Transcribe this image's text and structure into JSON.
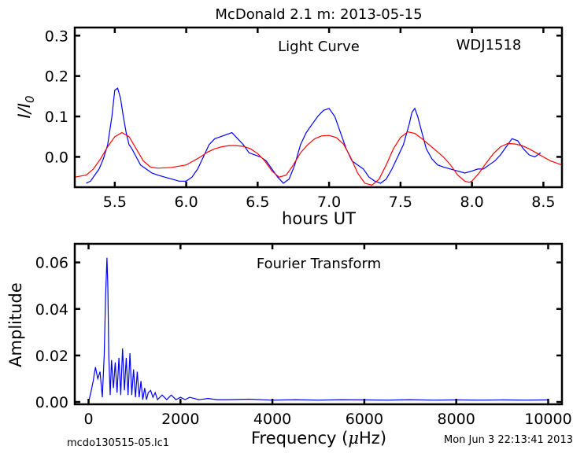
{
  "figure": {
    "title": "McDonald 2.1 m:  2013-05-15",
    "footer_left": "mcdo130515-05.lc1",
    "footer_right": "Mon Jun  3 22:13:41 2013"
  },
  "colors": {
    "data_line": "#0000ff",
    "model_line": "#ff0000",
    "axes": "#000000"
  },
  "chart_data": [
    {
      "type": "line",
      "annotations": [
        "Light Curve",
        "WDJ1518"
      ],
      "xlabel": "hours UT",
      "ylabel_parts": {
        "base": "I",
        "slash": "/",
        "denominator": "I",
        "subscript": "0"
      },
      "xlim": [
        5.22,
        8.63
      ],
      "ylim": [
        -0.075,
        0.32
      ],
      "x_ticks": [
        5.5,
        6.0,
        6.5,
        7.0,
        7.5,
        8.0,
        8.5
      ],
      "x_tick_labels": [
        "5.5",
        "6.0",
        "6.5",
        "7.0",
        "7.5",
        "8.0",
        "8.5"
      ],
      "y_ticks": [
        0.0,
        0.1,
        0.2,
        0.3
      ],
      "y_tick_labels": [
        "0.0",
        "0.1",
        "0.2",
        "0.3"
      ],
      "grid": false,
      "legend": false,
      "series": [
        {
          "role": "data",
          "x": [
            5.3,
            5.33,
            5.36,
            5.39,
            5.42,
            5.45,
            5.48,
            5.5,
            5.52,
            5.54,
            5.56,
            5.58,
            5.6,
            5.62,
            5.65,
            5.68,
            5.72,
            5.76,
            5.8,
            5.85,
            5.9,
            5.95,
            6.0,
            6.04,
            6.08,
            6.12,
            6.16,
            6.2,
            6.24,
            6.28,
            6.32,
            6.36,
            6.4,
            6.44,
            6.48,
            6.52,
            6.56,
            6.6,
            6.64,
            6.68,
            6.72,
            6.76,
            6.8,
            6.84,
            6.88,
            6.92,
            6.96,
            7.0,
            7.04,
            7.08,
            7.12,
            7.16,
            7.2,
            7.24,
            7.28,
            7.32,
            7.36,
            7.4,
            7.44,
            7.48,
            7.52,
            7.56,
            7.58,
            7.6,
            7.62,
            7.65,
            7.68,
            7.72,
            7.76,
            7.8,
            7.85,
            7.9,
            7.95,
            8.0,
            8.04,
            8.08,
            8.12,
            8.16,
            8.2,
            8.24,
            8.28,
            8.32,
            8.36,
            8.4,
            8.44,
            8.48
          ],
          "y": [
            -0.065,
            -0.06,
            -0.045,
            -0.03,
            -0.005,
            0.03,
            0.1,
            0.165,
            0.17,
            0.145,
            0.1,
            0.06,
            0.03,
            0.02,
            0.0,
            -0.02,
            -0.03,
            -0.04,
            -0.045,
            -0.05,
            -0.055,
            -0.06,
            -0.06,
            -0.05,
            -0.03,
            0.0,
            0.03,
            0.045,
            0.05,
            0.055,
            0.06,
            0.045,
            0.03,
            0.01,
            0.005,
            0.0,
            -0.01,
            -0.03,
            -0.05,
            -0.065,
            -0.055,
            -0.02,
            0.03,
            0.06,
            0.08,
            0.1,
            0.115,
            0.12,
            0.1,
            0.06,
            0.02,
            -0.01,
            -0.02,
            -0.03,
            -0.05,
            -0.06,
            -0.065,
            -0.055,
            -0.03,
            0.0,
            0.03,
            0.08,
            0.11,
            0.12,
            0.1,
            0.06,
            0.02,
            -0.005,
            -0.02,
            -0.025,
            -0.03,
            -0.035,
            -0.04,
            -0.035,
            -0.03,
            -0.03,
            -0.02,
            -0.01,
            0.005,
            0.025,
            0.045,
            0.04,
            0.02,
            0.005,
            0.0,
            0.01
          ]
        },
        {
          "role": "model",
          "x": [
            5.22,
            5.3,
            5.35,
            5.4,
            5.45,
            5.5,
            5.55,
            5.6,
            5.65,
            5.7,
            5.75,
            5.8,
            5.9,
            6.0,
            6.05,
            6.1,
            6.15,
            6.2,
            6.25,
            6.3,
            6.35,
            6.4,
            6.45,
            6.5,
            6.55,
            6.6,
            6.65,
            6.7,
            6.75,
            6.8,
            6.85,
            6.9,
            6.95,
            7.0,
            7.05,
            7.1,
            7.15,
            7.2,
            7.25,
            7.3,
            7.35,
            7.4,
            7.45,
            7.5,
            7.55,
            7.6,
            7.65,
            7.7,
            7.75,
            7.8,
            7.85,
            7.9,
            7.95,
            7.98,
            8.0,
            8.05,
            8.1,
            8.15,
            8.2,
            8.25,
            8.3,
            8.35,
            8.4,
            8.45,
            8.5,
            8.55,
            8.63
          ],
          "y": [
            -0.05,
            -0.045,
            -0.03,
            -0.005,
            0.025,
            0.05,
            0.06,
            0.05,
            0.02,
            -0.01,
            -0.025,
            -0.028,
            -0.026,
            -0.02,
            -0.01,
            0.0,
            0.012,
            0.02,
            0.025,
            0.028,
            0.028,
            0.026,
            0.02,
            0.008,
            -0.01,
            -0.035,
            -0.05,
            -0.045,
            -0.02,
            0.01,
            0.03,
            0.045,
            0.052,
            0.053,
            0.048,
            0.032,
            0.0,
            -0.04,
            -0.065,
            -0.07,
            -0.055,
            -0.02,
            0.02,
            0.048,
            0.062,
            0.058,
            0.045,
            0.03,
            0.015,
            0.0,
            -0.02,
            -0.045,
            -0.06,
            -0.063,
            -0.06,
            -0.04,
            -0.015,
            0.008,
            0.025,
            0.033,
            0.032,
            0.028,
            0.02,
            0.01,
            0.0,
            -0.01,
            -0.02
          ]
        }
      ]
    },
    {
      "type": "line",
      "annotations": [
        "Fourier Transform"
      ],
      "xlabel_parts": {
        "before": "Frequency (",
        "mu": "μ",
        "after": "Hz)"
      },
      "ylabel": "Amplitude",
      "xlim": [
        -300,
        10300
      ],
      "ylim": [
        -0.001,
        0.068
      ],
      "x_ticks": [
        0,
        2000,
        4000,
        6000,
        8000,
        10000
      ],
      "x_tick_labels": [
        "0",
        "2000",
        "4000",
        "6000",
        "8000",
        "10000"
      ],
      "y_ticks": [
        0.0,
        0.02,
        0.04,
        0.06
      ],
      "y_tick_labels": [
        "0.00",
        "0.02",
        "0.04",
        "0.06"
      ],
      "grid": false,
      "legend": false,
      "series": [
        {
          "role": "amplitude",
          "x": [
            0,
            50,
            100,
            150,
            200,
            250,
            300,
            340,
            370,
            400,
            420,
            440,
            470,
            500,
            540,
            580,
            620,
            660,
            700,
            740,
            780,
            820,
            860,
            900,
            940,
            980,
            1020,
            1060,
            1100,
            1140,
            1180,
            1220,
            1260,
            1300,
            1350,
            1400,
            1450,
            1500,
            1600,
            1700,
            1800,
            1900,
            2000,
            2100,
            2200,
            2400,
            2600,
            2800,
            3000,
            3500,
            4000,
            4500,
            5000,
            5500,
            6000,
            6500,
            7000,
            7500,
            8000,
            8500,
            9000,
            9500,
            10000
          ],
          "y": [
            0.0,
            0.004,
            0.009,
            0.015,
            0.01,
            0.013,
            0.002,
            0.02,
            0.045,
            0.062,
            0.05,
            0.02,
            0.003,
            0.018,
            0.006,
            0.017,
            0.004,
            0.019,
            0.003,
            0.023,
            0.005,
            0.019,
            0.003,
            0.021,
            0.003,
            0.014,
            0.002,
            0.013,
            0.002,
            0.009,
            0.001,
            0.006,
            0.001,
            0.004,
            0.005,
            0.002,
            0.004,
            0.001,
            0.003,
            0.001,
            0.003,
            0.001,
            0.002,
            0.001,
            0.002,
            0.001,
            0.0015,
            0.001,
            0.001,
            0.0012,
            0.0008,
            0.001,
            0.0008,
            0.001,
            0.0009,
            0.0008,
            0.001,
            0.0008,
            0.0009,
            0.0008,
            0.0009,
            0.0008,
            0.0009
          ]
        }
      ]
    }
  ]
}
